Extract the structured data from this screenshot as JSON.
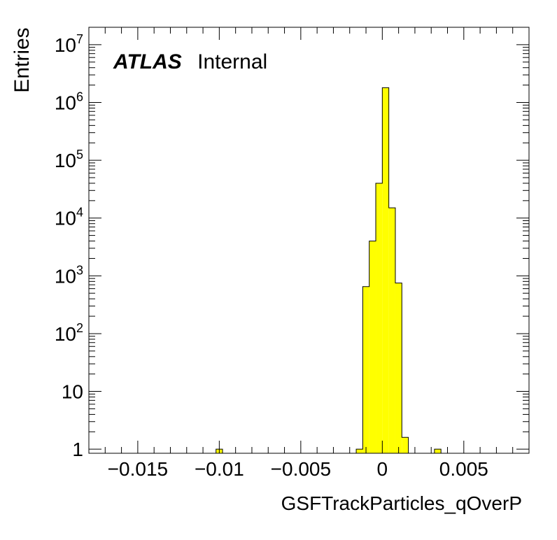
{
  "chart_data": {
    "type": "bar",
    "title": "",
    "xlabel": "GSFTrackParticles_qOverP",
    "ylabel": "Entries",
    "annotation": {
      "experiment": "ATLAS",
      "status": "Internal"
    },
    "xlim": [
      -0.018,
      0.009
    ],
    "ylim": [
      0.85,
      20000000
    ],
    "yscale": "log",
    "fill_color": "#ffff00",
    "line_color": "#000000",
    "x_ticks": [
      {
        "value": -0.015,
        "label": "−0.015"
      },
      {
        "value": -0.01,
        "label": "−0.01"
      },
      {
        "value": -0.005,
        "label": "−0.005"
      },
      {
        "value": 0,
        "label": "0"
      },
      {
        "value": 0.005,
        "label": "0.005"
      }
    ],
    "y_ticks": [
      {
        "value": 1,
        "label": "1",
        "exp": ""
      },
      {
        "value": 10,
        "label": "10",
        "exp": ""
      },
      {
        "value": 100,
        "label": "10",
        "exp": "2"
      },
      {
        "value": 1000,
        "label": "10",
        "exp": "3"
      },
      {
        "value": 10000,
        "label": "10",
        "exp": "4"
      },
      {
        "value": 100000,
        "label": "10",
        "exp": "5"
      },
      {
        "value": 1000000,
        "label": "10",
        "exp": "6"
      },
      {
        "value": 10000000,
        "label": "10",
        "exp": "7"
      }
    ],
    "bins": [
      {
        "x0": -0.0102,
        "x1": -0.0098,
        "value": 1
      },
      {
        "x0": -0.0016,
        "x1": -0.0012,
        "value": 1
      },
      {
        "x0": -0.0012,
        "x1": -0.0008,
        "value": 650
      },
      {
        "x0": -0.0008,
        "x1": -0.0004,
        "value": 4000
      },
      {
        "x0": -0.0004,
        "x1": 0.0,
        "value": 40000
      },
      {
        "x0": 0.0,
        "x1": 0.0004,
        "value": 1800000
      },
      {
        "x0": 0.0004,
        "x1": 0.0008,
        "value": 15000
      },
      {
        "x0": 0.0008,
        "x1": 0.0012,
        "value": 750
      },
      {
        "x0": 0.0012,
        "x1": 0.0016,
        "value": 1.6
      },
      {
        "x0": 0.0032,
        "x1": 0.0036,
        "value": 1
      }
    ]
  }
}
